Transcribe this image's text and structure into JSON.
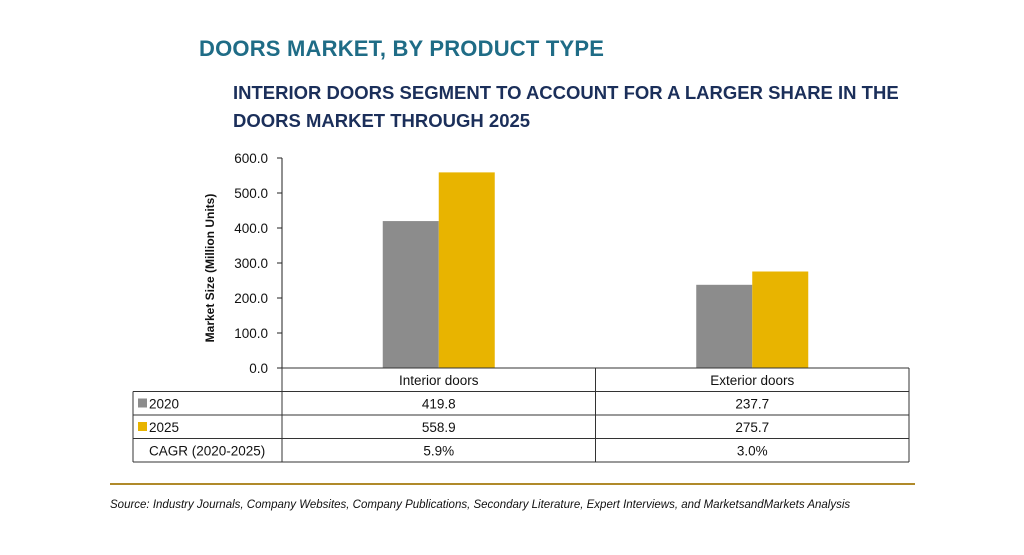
{
  "header": {
    "title": "DOORS MARKET, BY PRODUCT TYPE",
    "subtitle": "INTERIOR DOORS SEGMENT TO ACCOUNT FOR A LARGER SHARE IN THE DOORS MARKET THROUGH 2025"
  },
  "chart_data": {
    "type": "bar",
    "categories": [
      "Interior doors",
      "Exterior doors"
    ],
    "series": [
      {
        "name": "2020",
        "values": [
          419.8,
          237.7
        ],
        "display": [
          "419.8",
          "237.7"
        ],
        "color": "#8c8c8c"
      },
      {
        "name": "2025",
        "values": [
          558.9,
          275.7
        ],
        "display": [
          "558.9",
          "275.7"
        ],
        "color": "#e8b400"
      }
    ],
    "extra_rows": [
      {
        "label": "CAGR (2020-2025)",
        "values": [
          "5.9%",
          "3.0%"
        ]
      }
    ],
    "ylabel": "Market Size (Million Units)",
    "ylim": [
      0,
      600
    ],
    "yticks": [
      "0.0",
      "100.0",
      "200.0",
      "300.0",
      "400.0",
      "500.0",
      "600.0"
    ],
    "grid": false,
    "legend": "table"
  },
  "footer": {
    "source": "Source: Industry Journals, Company Websites, Company Publications, Secondary Literature, Expert Interviews, and MarketsandMarkets Analysis"
  },
  "colors": {
    "title": "#1f6c86",
    "subtitle": "#1b2f5a",
    "divider": "#b08a2a"
  }
}
